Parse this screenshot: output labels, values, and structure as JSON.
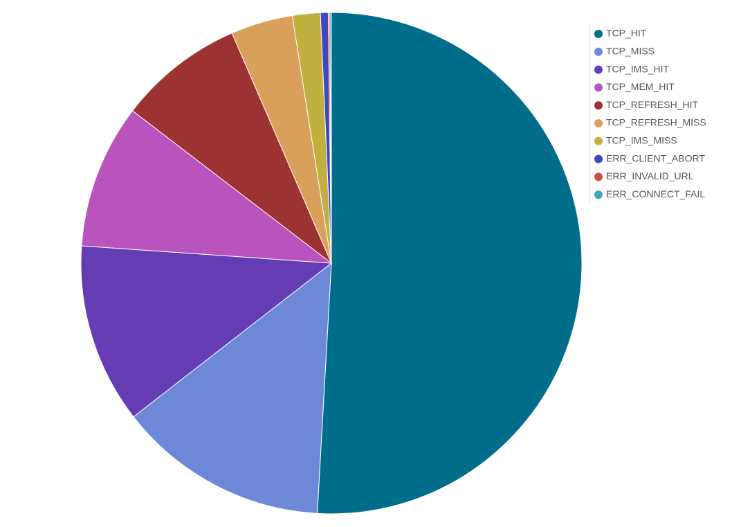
{
  "chart_data": {
    "type": "pie",
    "categories": [
      "TCP_HIT",
      "TCP_MISS",
      "TCP_IMS_HIT",
      "TCP_MEM_HIT",
      "TCP_REFRESH_HIT",
      "TCP_REFRESH_MISS",
      "TCP_IMS_MISS",
      "ERR_CLIENT_ABORT",
      "ERR_INVALID_URL",
      "ERR_CONNECT_FAIL"
    ],
    "values": [
      50.9,
      13.6,
      11.6,
      9.3,
      8.1,
      4.0,
      1.8,
      0.5,
      0.1,
      0.1
    ],
    "colors": [
      "#006d8a",
      "#6e88d8",
      "#643cb4",
      "#b954be",
      "#9c3232",
      "#d9a05c",
      "#c0b040",
      "#3f48c0",
      "#c8503c",
      "#3aa8b8"
    ],
    "legend": "top-right"
  }
}
